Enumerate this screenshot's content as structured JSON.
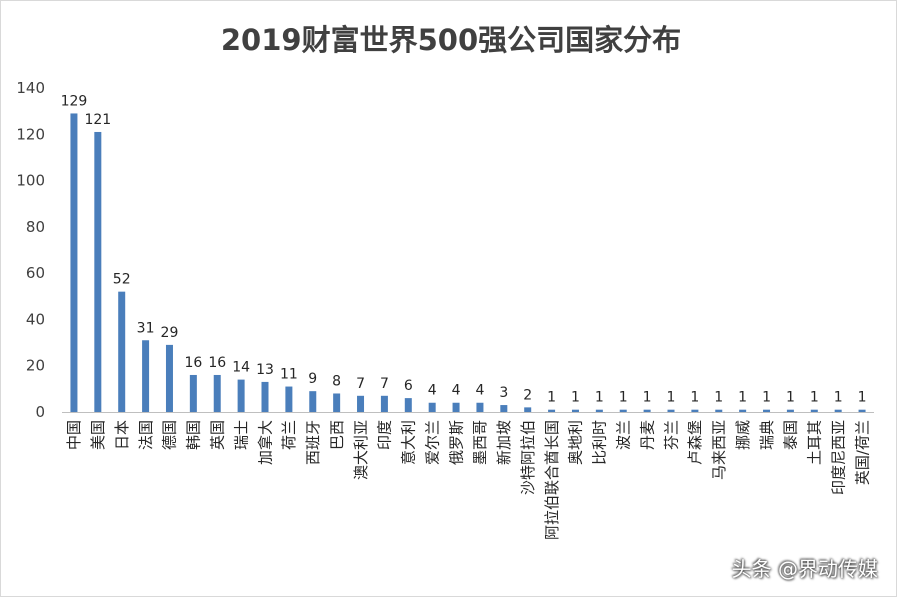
{
  "chart_data": {
    "type": "bar",
    "title": "2019财富世界500强公司国家分布",
    "xlabel": "",
    "ylabel": "",
    "ylim": [
      0,
      140
    ],
    "yticks": [
      0,
      20,
      40,
      60,
      80,
      100,
      120,
      140
    ],
    "grid": false,
    "legend": "none",
    "bar_color": "#4a7ebb",
    "categories": [
      "中国",
      "美国",
      "日本",
      "法国",
      "德国",
      "韩国",
      "英国",
      "瑞士",
      "加拿大",
      "荷兰",
      "西班牙",
      "巴西",
      "澳大利亚",
      "印度",
      "意大利",
      "爱尔兰",
      "俄罗斯",
      "墨西哥",
      "新加坡",
      "沙特阿拉伯",
      "阿拉伯联合酋长国",
      "奥地利",
      "比利时",
      "波兰",
      "丹麦",
      "芬兰",
      "卢森堡",
      "马来西亚",
      "挪威",
      "瑞典",
      "泰国",
      "土耳其",
      "印度尼西亚",
      "英国/荷兰"
    ],
    "values": [
      129,
      121,
      52,
      31,
      29,
      16,
      16,
      14,
      13,
      11,
      9,
      8,
      7,
      7,
      6,
      4,
      4,
      4,
      3,
      2,
      1,
      1,
      1,
      1,
      1,
      1,
      1,
      1,
      1,
      1,
      1,
      1,
      1,
      1
    ]
  },
  "watermark": "头条 @界动传媒"
}
